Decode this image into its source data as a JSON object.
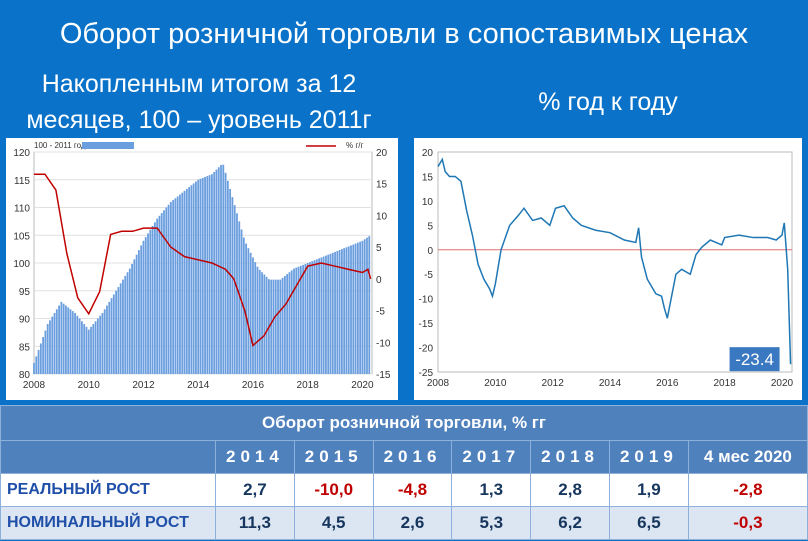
{
  "title": "Оборот розничной торговли в сопоставимых ценах",
  "left_subtitle": "Накопленным итогом за 12 месяцев, 100 – уровень 2011г",
  "right_subtitle": "% год к году",
  "colors": {
    "background": "#0a73c9",
    "bar": "#6a9ede",
    "red_line": "#c00000",
    "blue_line": "#1f77b4",
    "zero_line": "#e07070"
  },
  "chart_data": [
    {
      "type": "bar",
      "legend": [
        "100 - 2011 год",
        "% г/г"
      ],
      "xticks": [
        "2008",
        "2010",
        "2012",
        "2014",
        "2016",
        "2018",
        "2020"
      ],
      "ylim": [
        80,
        120
      ],
      "yticks": [
        "80",
        "85",
        "90",
        "95",
        "100",
        "105",
        "110",
        "115",
        "120"
      ],
      "y2lim": [
        -15,
        20
      ],
      "y2ticks": [
        "-15",
        "-10",
        "-5",
        "0",
        "5",
        "10",
        "15",
        "20"
      ],
      "series": [
        {
          "name": "100 - 2011 год",
          "type": "bar",
          "x": [
            2008.0,
            2008.5,
            2009.0,
            2009.5,
            2010.0,
            2010.5,
            2011.0,
            2011.5,
            2012.0,
            2012.5,
            2013.0,
            2013.5,
            2014.0,
            2014.5,
            2014.9,
            2015.3,
            2015.7,
            2016.2,
            2016.6,
            2017.0,
            2017.5,
            2018.0,
            2018.5,
            2019.0,
            2019.5,
            2020.0,
            2020.3
          ],
          "values": [
            82,
            89,
            93,
            91,
            88,
            91,
            95,
            99,
            104,
            108,
            111,
            113,
            115,
            116,
            118,
            111,
            104,
            99,
            97,
            97,
            99,
            100,
            101,
            102,
            103,
            104,
            105
          ]
        },
        {
          "name": "% г/г",
          "type": "line",
          "x": [
            2008.0,
            2008.4,
            2008.8,
            2009.2,
            2009.6,
            2010.0,
            2010.4,
            2010.8,
            2011.2,
            2011.6,
            2012.0,
            2012.5,
            2013.0,
            2013.5,
            2014.0,
            2014.5,
            2015.0,
            2015.3,
            2015.7,
            2016.0,
            2016.4,
            2016.8,
            2017.2,
            2017.6,
            2018.0,
            2018.5,
            2019.0,
            2019.5,
            2020.0,
            2020.2,
            2020.3
          ],
          "values": [
            16.5,
            16.5,
            14,
            4,
            -3,
            -5.5,
            -2,
            7,
            7.5,
            7.5,
            8,
            8,
            5,
            3.5,
            3,
            2.5,
            1.5,
            0,
            -5,
            -10.5,
            -9,
            -6,
            -4,
            -1,
            2,
            2.5,
            2,
            1.5,
            1,
            1.5,
            0
          ]
        }
      ]
    },
    {
      "type": "line",
      "xticks": [
        "2008",
        "2010",
        "2012",
        "2014",
        "2016",
        "2018",
        "2020"
      ],
      "ylim": [
        -25,
        20
      ],
      "yticks": [
        "-25",
        "-20",
        "-15",
        "-10",
        "-5",
        "0",
        "5",
        "10",
        "15",
        "20"
      ],
      "annotation": "-23.4",
      "series": [
        {
          "name": "",
          "x": [
            2008.0,
            2008.15,
            2008.25,
            2008.4,
            2008.6,
            2008.8,
            2009.0,
            2009.2,
            2009.4,
            2009.6,
            2009.8,
            2009.9,
            2010.0,
            2010.2,
            2010.5,
            2010.8,
            2011.0,
            2011.3,
            2011.6,
            2011.9,
            2012.1,
            2012.4,
            2012.7,
            2013.0,
            2013.5,
            2014.0,
            2014.5,
            2014.9,
            2015.0,
            2015.1,
            2015.3,
            2015.6,
            2015.8,
            2015.9,
            2016.0,
            2016.3,
            2016.5,
            2016.8,
            2017.0,
            2017.2,
            2017.5,
            2017.9,
            2018.0,
            2018.5,
            2019.0,
            2019.5,
            2019.8,
            2020.0,
            2020.08,
            2020.2,
            2020.3
          ],
          "values": [
            17,
            18.5,
            16,
            15,
            15,
            14,
            8,
            3,
            -3,
            -6,
            -8,
            -9.5,
            -7,
            0,
            5,
            7,
            8.5,
            6,
            6.5,
            5,
            8.5,
            9,
            6.5,
            5,
            4,
            3.5,
            2,
            1.5,
            4.5,
            -1.5,
            -6,
            -9,
            -9.5,
            -12,
            -14,
            -5,
            -4,
            -5,
            -1,
            0.5,
            2,
            1,
            2.5,
            3,
            2.5,
            2.5,
            2,
            3,
            5.5,
            -4,
            -23.4
          ]
        }
      ]
    }
  ],
  "table": {
    "title": "Оборот розничной торговли, % гг",
    "columns": [
      "2014",
      "2015",
      "2016",
      "2017",
      "2018",
      "2019",
      "4 мес 2020"
    ],
    "rows": [
      {
        "label": "РЕАЛЬНЫЙ РОСТ",
        "values": [
          "2,7",
          "-10,0",
          "-4,8",
          "1,3",
          "2,8",
          "1,9",
          "-2,8"
        ]
      },
      {
        "label": "НОМИНАЛЬНЫЙ РОСТ",
        "values": [
          "11,3",
          "4,5",
          "2,6",
          "5,3",
          "6,2",
          "6,5",
          "-0,3"
        ]
      }
    ]
  }
}
